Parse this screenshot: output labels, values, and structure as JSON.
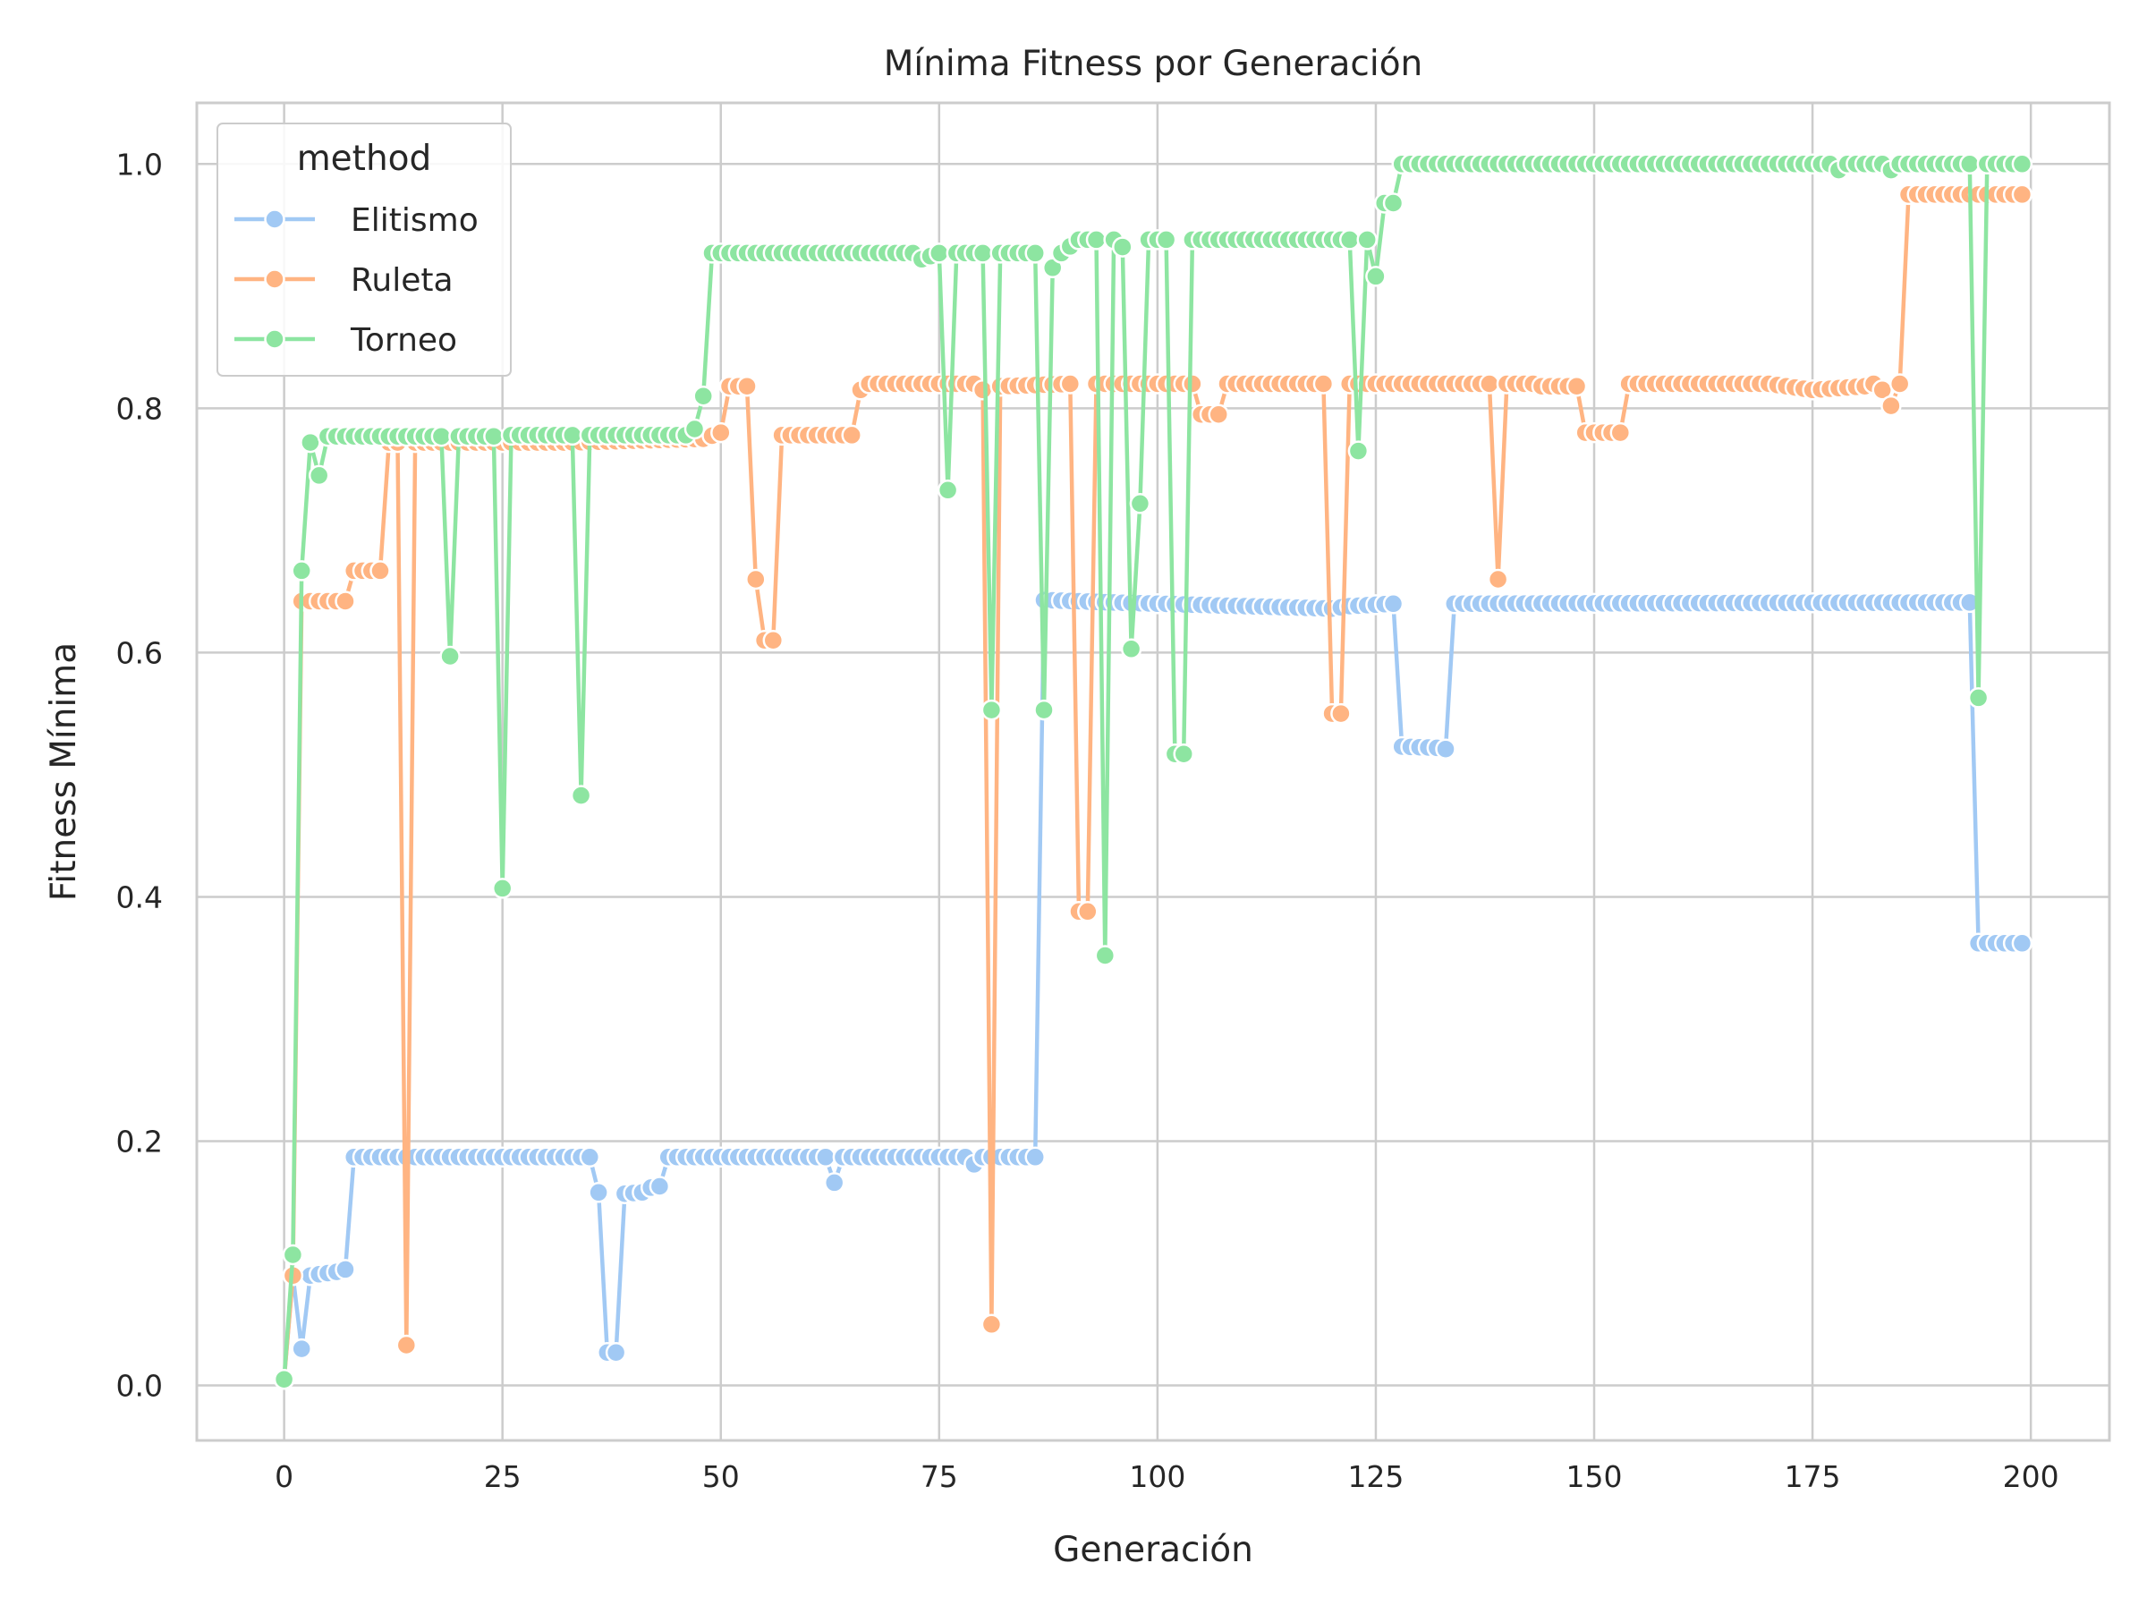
{
  "chart_data": {
    "type": "line",
    "title": "Mínima Fitness por Generación",
    "xlabel": "Generación",
    "ylabel": "Fitness Mínima",
    "xlim": [
      -10,
      209
    ],
    "ylim": [
      -0.045,
      1.05
    ],
    "xticks": [
      0,
      25,
      50,
      75,
      100,
      125,
      150,
      175,
      200
    ],
    "yticks": [
      0.0,
      0.2,
      0.4,
      0.6,
      0.8,
      1.0
    ],
    "xtick_labels": [
      "0",
      "25",
      "50",
      "75",
      "100",
      "125",
      "150",
      "175",
      "200"
    ],
    "ytick_labels": [
      "0.0",
      "0.2",
      "0.4",
      "0.6",
      "0.8",
      "1.0"
    ],
    "grid": true,
    "legend": {
      "title": "method",
      "placement": "top-left"
    },
    "series": [
      {
        "name": "Elitismo",
        "color": "#a1c9f4",
        "segments": [
          [
            0,
            0.005
          ],
          [
            1,
            0.09
          ],
          [
            2,
            0.03
          ],
          [
            3,
            0.09
          ],
          [
            6,
            0.093
          ],
          [
            7,
            0.095
          ],
          [
            8,
            0.187
          ],
          [
            35,
            0.187
          ],
          [
            36,
            0.158
          ],
          [
            37,
            0.027
          ],
          [
            38,
            0.027
          ],
          [
            39,
            0.157
          ],
          [
            41,
            0.158
          ],
          [
            42,
            0.162
          ],
          [
            43,
            0.163
          ],
          [
            44,
            0.187
          ],
          [
            62,
            0.187
          ],
          [
            63,
            0.166
          ],
          [
            64,
            0.187
          ],
          [
            78,
            0.187
          ],
          [
            79,
            0.181
          ],
          [
            80,
            0.187
          ],
          [
            86,
            0.187
          ],
          [
            87,
            0.643
          ],
          [
            95,
            0.641
          ],
          [
            110,
            0.638
          ],
          [
            120,
            0.636
          ],
          [
            122,
            0.638
          ],
          [
            127,
            0.64
          ],
          [
            128,
            0.523
          ],
          [
            132,
            0.522
          ],
          [
            133,
            0.521
          ],
          [
            134,
            0.64
          ],
          [
            193,
            0.641
          ],
          [
            194,
            0.362
          ],
          [
            199,
            0.362
          ]
        ]
      },
      {
        "name": "Ruleta",
        "color": "#ffb482",
        "segments": [
          [
            0,
            0.005
          ],
          [
            1,
            0.09
          ],
          [
            2,
            0.642
          ],
          [
            7,
            0.642
          ],
          [
            8,
            0.667
          ],
          [
            11,
            0.667
          ],
          [
            12,
            0.772
          ],
          [
            13,
            0.772
          ],
          [
            14,
            0.033
          ],
          [
            15,
            0.772
          ],
          [
            33,
            0.772
          ],
          [
            48,
            0.775
          ],
          [
            50,
            0.78
          ],
          [
            51,
            0.818
          ],
          [
            53,
            0.818
          ],
          [
            54,
            0.66
          ],
          [
            55,
            0.61
          ],
          [
            56,
            0.61
          ],
          [
            57,
            0.778
          ],
          [
            65,
            0.778
          ],
          [
            66,
            0.815
          ],
          [
            67,
            0.82
          ],
          [
            79,
            0.82
          ],
          [
            80,
            0.815
          ],
          [
            81,
            0.05
          ],
          [
            82,
            0.818
          ],
          [
            90,
            0.82
          ],
          [
            91,
            0.388
          ],
          [
            92,
            0.388
          ],
          [
            93,
            0.82
          ],
          [
            104,
            0.82
          ],
          [
            105,
            0.795
          ],
          [
            107,
            0.795
          ],
          [
            108,
            0.82
          ],
          [
            119,
            0.82
          ],
          [
            120,
            0.55
          ],
          [
            121,
            0.55
          ],
          [
            122,
            0.82
          ],
          [
            138,
            0.82
          ],
          [
            139,
            0.66
          ],
          [
            140,
            0.82
          ],
          [
            143,
            0.82
          ],
          [
            144,
            0.818
          ],
          [
            148,
            0.818
          ],
          [
            149,
            0.78
          ],
          [
            153,
            0.78
          ],
          [
            154,
            0.82
          ],
          [
            170,
            0.82
          ],
          [
            175,
            0.815
          ],
          [
            181,
            0.818
          ],
          [
            182,
            0.82
          ],
          [
            183,
            0.815
          ],
          [
            184,
            0.802
          ],
          [
            185,
            0.82
          ],
          [
            186,
            0.975
          ],
          [
            199,
            0.975
          ]
        ]
      },
      {
        "name": "Torneo",
        "color": "#8de5a1",
        "segments": [
          [
            0,
            0.005
          ],
          [
            1,
            0.107
          ],
          [
            2,
            0.667
          ],
          [
            3,
            0.772
          ],
          [
            4,
            0.745
          ],
          [
            5,
            0.777
          ],
          [
            18,
            0.777
          ],
          [
            19,
            0.597
          ],
          [
            20,
            0.777
          ],
          [
            24,
            0.777
          ],
          [
            25,
            0.407
          ],
          [
            26,
            0.778
          ],
          [
            33,
            0.778
          ],
          [
            34,
            0.483
          ],
          [
            35,
            0.778
          ],
          [
            46,
            0.778
          ],
          [
            47,
            0.783
          ],
          [
            48,
            0.81
          ],
          [
            49,
            0.927
          ],
          [
            72,
            0.927
          ],
          [
            73,
            0.922
          ],
          [
            75,
            0.927
          ],
          [
            76,
            0.733
          ],
          [
            77,
            0.927
          ],
          [
            79,
            0.927
          ],
          [
            80,
            0.927
          ],
          [
            81,
            0.553
          ],
          [
            82,
            0.927
          ],
          [
            86,
            0.927
          ],
          [
            87,
            0.553
          ],
          [
            88,
            0.915
          ],
          [
            89,
            0.927
          ],
          [
            91,
            0.938
          ],
          [
            93,
            0.938
          ],
          [
            94,
            0.352
          ],
          [
            95,
            0.938
          ],
          [
            96,
            0.932
          ],
          [
            97,
            0.603
          ],
          [
            98,
            0.722
          ],
          [
            99,
            0.938
          ],
          [
            101,
            0.938
          ],
          [
            102,
            0.517
          ],
          [
            103,
            0.517
          ],
          [
            104,
            0.938
          ],
          [
            122,
            0.938
          ],
          [
            123,
            0.765
          ],
          [
            124,
            0.938
          ],
          [
            125,
            0.908
          ],
          [
            126,
            0.968
          ],
          [
            127,
            0.968
          ],
          [
            128,
            1.0
          ],
          [
            177,
            1.0
          ],
          [
            178,
            0.995
          ],
          [
            179,
            1.0
          ],
          [
            183,
            1.0
          ],
          [
            184,
            0.995
          ],
          [
            185,
            1.0
          ],
          [
            193,
            1.0
          ],
          [
            194,
            0.563
          ],
          [
            195,
            1.0
          ],
          [
            199,
            1.0
          ]
        ]
      }
    ]
  }
}
